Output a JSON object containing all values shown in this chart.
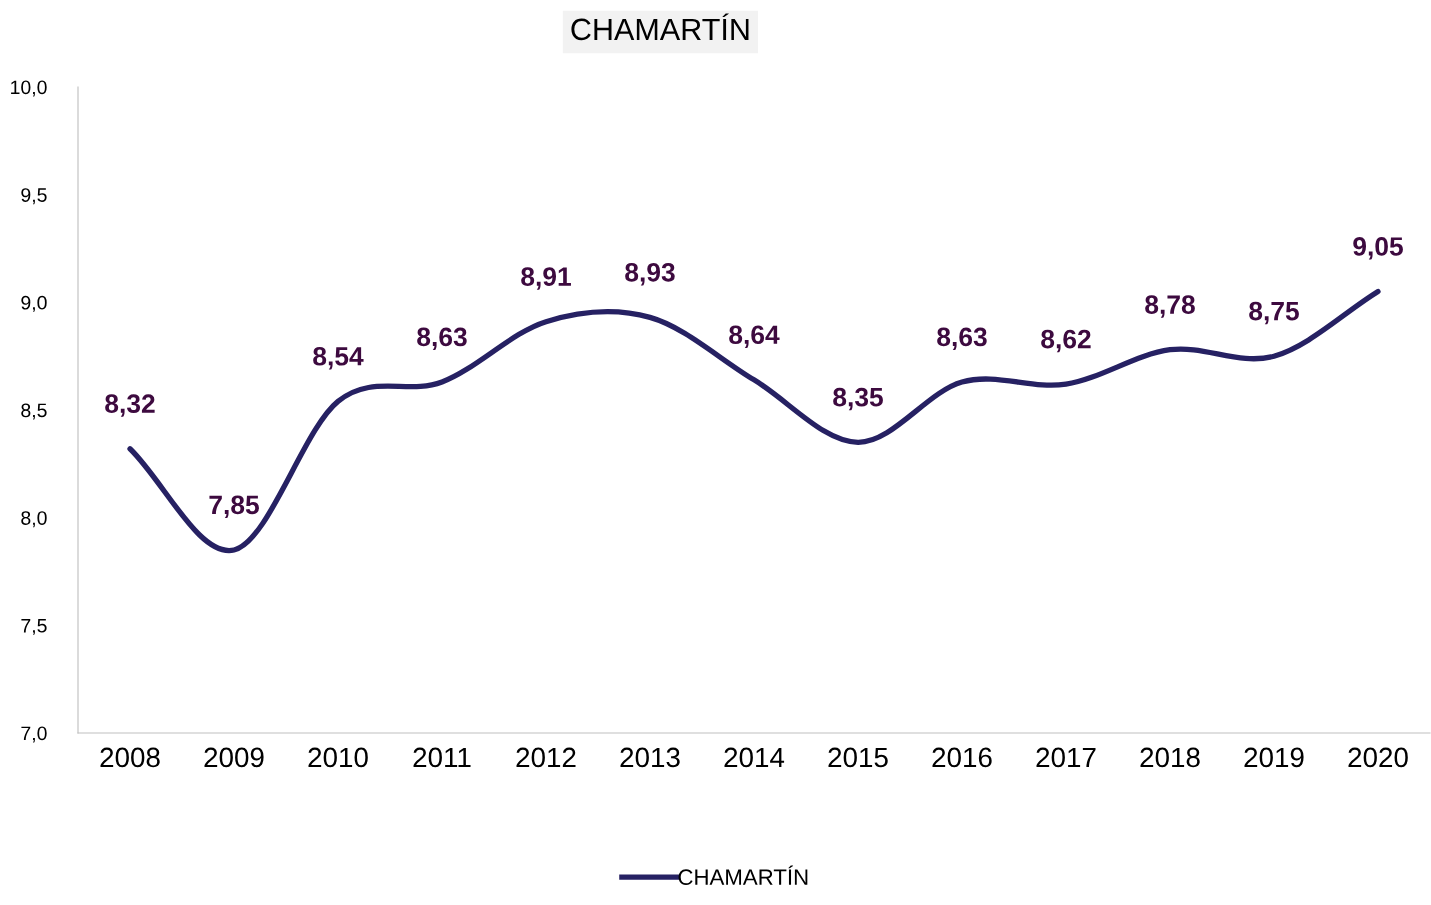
{
  "chart_data": {
    "type": "line",
    "title": "CHAMARTÍN",
    "categories": [
      "2008",
      "2009",
      "2010",
      "2011",
      "2012",
      "2013",
      "2014",
      "2015",
      "2016",
      "2017",
      "2018",
      "2019",
      "2020"
    ],
    "series": [
      {
        "name": "CHAMARTÍN",
        "color": "#262163",
        "values": [
          8.32,
          7.85,
          8.54,
          8.63,
          8.91,
          8.93,
          8.64,
          8.35,
          8.63,
          8.62,
          8.78,
          8.75,
          9.05
        ],
        "value_labels": [
          "8,32",
          "7,85",
          "8,54",
          "8,63",
          "8,91",
          "8,93",
          "8,64",
          "8,35",
          "8,63",
          "8,62",
          "8,78",
          "8,75",
          "9,05"
        ]
      }
    ],
    "ylim": [
      7.0,
      10.0
    ],
    "yticks": [
      {
        "value": 7.0,
        "label": "7,0"
      },
      {
        "value": 7.5,
        "label": "7,5"
      },
      {
        "value": 8.0,
        "label": "8,0"
      },
      {
        "value": 8.5,
        "label": "8,5"
      },
      {
        "value": 9.0,
        "label": "9,0"
      },
      {
        "value": 9.5,
        "label": "9,5"
      },
      {
        "value": 10.0,
        "label": "10,0"
      }
    ],
    "grid": false,
    "legend": "bottom",
    "marker": "none",
    "line_style": "solid"
  }
}
